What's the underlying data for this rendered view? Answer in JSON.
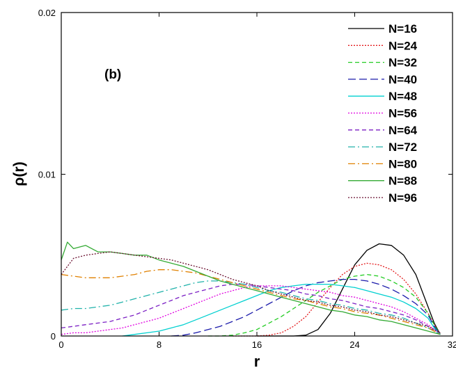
{
  "chart_data": {
    "type": "line",
    "panel_label": "(b)",
    "xlabel": "r",
    "ylabel": "ρ(r)",
    "xlim": [
      0,
      32
    ],
    "ylim": [
      0,
      0.02
    ],
    "xticks": [
      0,
      8,
      16,
      24,
      32
    ],
    "xtick_labels": [
      "0",
      "8",
      "16",
      "24",
      "32"
    ],
    "yticks": [
      0,
      0.01,
      0.02
    ],
    "ytick_labels": [
      "0",
      "0.01",
      "0.02"
    ],
    "grid": false,
    "legend_position": "top-right",
    "series": [
      {
        "name": "N=16",
        "color": "#000000",
        "dash": "solid",
        "x": [
          16,
          17,
          18,
          19,
          20,
          21,
          22,
          23,
          24,
          25,
          26,
          27,
          28,
          29,
          30,
          30.5,
          31
        ],
        "y": [
          0,
          0,
          0,
          0,
          5e-05,
          0.0004,
          0.0014,
          0.0029,
          0.0044,
          0.0053,
          0.0057,
          0.0056,
          0.005,
          0.0038,
          0.0018,
          0.0008,
          0.0001
        ]
      },
      {
        "name": "N=24",
        "color": "#e31a1c",
        "dash": "dotted",
        "x": [
          14,
          15,
          16,
          17,
          18,
          19,
          20,
          21,
          22,
          23,
          24,
          25,
          26,
          27,
          28,
          29,
          30,
          30.5,
          31
        ],
        "y": [
          0,
          0,
          0,
          5e-05,
          0.0002,
          0.0006,
          0.0012,
          0.0021,
          0.003,
          0.0038,
          0.0043,
          0.0045,
          0.0044,
          0.0041,
          0.0035,
          0.0026,
          0.0014,
          0.0007,
          0.0001
        ]
      },
      {
        "name": "N=32",
        "color": "#22cc22",
        "dash": "dashed",
        "x": [
          12,
          13,
          14,
          15,
          16,
          17,
          18,
          19,
          20,
          21,
          22,
          23,
          24,
          25,
          26,
          27,
          28,
          29,
          30,
          30.5,
          31
        ],
        "y": [
          0,
          0,
          5e-05,
          0.0002,
          0.0004,
          0.0008,
          0.0012,
          0.0017,
          0.0022,
          0.0027,
          0.0031,
          0.0035,
          0.0037,
          0.0038,
          0.0037,
          0.0034,
          0.003,
          0.0024,
          0.0014,
          0.0007,
          0.0001
        ]
      },
      {
        "name": "N=40",
        "color": "#1a1aaa",
        "dash": "longdash",
        "x": [
          9,
          10,
          11,
          12,
          13,
          14,
          15,
          16,
          17,
          18,
          19,
          20,
          21,
          22,
          23,
          24,
          25,
          26,
          27,
          28,
          29,
          30,
          30.5,
          31
        ],
        "y": [
          0,
          5e-05,
          0.0002,
          0.0004,
          0.0006,
          0.0009,
          0.0012,
          0.0016,
          0.002,
          0.0024,
          0.0028,
          0.0031,
          0.0033,
          0.0034,
          0.0035,
          0.0035,
          0.0034,
          0.0032,
          0.0029,
          0.0025,
          0.002,
          0.0013,
          0.0006,
          0.0001
        ]
      },
      {
        "name": "N=48",
        "color": "#00d0d0",
        "dash": "solid",
        "x": [
          5,
          6,
          7,
          8,
          9,
          10,
          11,
          12,
          13,
          14,
          15,
          16,
          17,
          18,
          19,
          20,
          21,
          22,
          23,
          24,
          25,
          26,
          27,
          28,
          29,
          30,
          30.5,
          31
        ],
        "y": [
          0,
          0.0001,
          0.0002,
          0.0003,
          0.0005,
          0.0007,
          0.001,
          0.0013,
          0.0016,
          0.0019,
          0.0022,
          0.0025,
          0.0028,
          0.003,
          0.0031,
          0.0032,
          0.0032,
          0.0032,
          0.0031,
          0.003,
          0.0028,
          0.0026,
          0.0024,
          0.0021,
          0.0017,
          0.0011,
          0.0005,
          0.0001
        ]
      },
      {
        "name": "N=56",
        "color": "#e000e0",
        "dash": "dotted",
        "x": [
          0,
          1,
          2,
          3,
          4,
          5,
          6,
          7,
          8,
          9,
          10,
          11,
          12,
          13,
          14,
          15,
          16,
          17,
          18,
          19,
          20,
          21,
          22,
          23,
          24,
          25,
          26,
          27,
          28,
          29,
          30,
          30.5,
          31
        ],
        "y": [
          0.0001,
          0.0002,
          0.0002,
          0.0003,
          0.0004,
          0.0005,
          0.0007,
          0.0009,
          0.0011,
          0.0014,
          0.0017,
          0.002,
          0.0023,
          0.0026,
          0.0028,
          0.003,
          0.0031,
          0.0031,
          0.0031,
          0.003,
          0.0029,
          0.0028,
          0.0027,
          0.0025,
          0.0024,
          0.0022,
          0.002,
          0.0018,
          0.0015,
          0.0011,
          0.0007,
          0.0004,
          0.0001
        ]
      },
      {
        "name": "N=64",
        "color": "#7b1fc4",
        "dash": "dashed",
        "x": [
          0,
          1,
          2,
          3,
          4,
          5,
          6,
          7,
          8,
          9,
          10,
          11,
          12,
          13,
          14,
          15,
          16,
          17,
          18,
          19,
          20,
          21,
          22,
          23,
          24,
          25,
          26,
          27,
          28,
          29,
          30,
          30.5,
          31
        ],
        "y": [
          0.0005,
          0.0006,
          0.0007,
          0.0008,
          0.0009,
          0.0011,
          0.0013,
          0.0016,
          0.0019,
          0.0022,
          0.0025,
          0.0027,
          0.0029,
          0.0031,
          0.0032,
          0.0032,
          0.0031,
          0.003,
          0.0029,
          0.0028,
          0.0026,
          0.0025,
          0.0023,
          0.0022,
          0.002,
          0.0018,
          0.0017,
          0.0015,
          0.0013,
          0.001,
          0.0006,
          0.0003,
          0.0001
        ]
      },
      {
        "name": "N=72",
        "color": "#20b2aa",
        "dash": "dashdot",
        "x": [
          0,
          1,
          2,
          3,
          4,
          5,
          6,
          7,
          8,
          9,
          10,
          11,
          12,
          13,
          14,
          15,
          16,
          17,
          18,
          19,
          20,
          21,
          22,
          23,
          24,
          25,
          26,
          27,
          28,
          29,
          30,
          30.5,
          31
        ],
        "y": [
          0.0016,
          0.0017,
          0.0017,
          0.0018,
          0.0019,
          0.0021,
          0.0023,
          0.0025,
          0.0027,
          0.0029,
          0.0031,
          0.0033,
          0.0034,
          0.0034,
          0.0033,
          0.0032,
          0.003,
          0.0028,
          0.0027,
          0.0025,
          0.0023,
          0.0022,
          0.002,
          0.0019,
          0.0017,
          0.0016,
          0.0014,
          0.0013,
          0.0011,
          0.0008,
          0.0005,
          0.0003,
          0.0001
        ]
      },
      {
        "name": "N=80",
        "color": "#e08000",
        "dash": "dashdot",
        "x": [
          0,
          1,
          2,
          3,
          4,
          5,
          6,
          7,
          8,
          9,
          10,
          11,
          12,
          13,
          14,
          15,
          16,
          17,
          18,
          19,
          20,
          21,
          22,
          23,
          24,
          25,
          26,
          27,
          28,
          29,
          30,
          30.5,
          31
        ],
        "y": [
          0.0038,
          0.0037,
          0.0036,
          0.0036,
          0.0036,
          0.0037,
          0.0038,
          0.004,
          0.0041,
          0.0041,
          0.004,
          0.0039,
          0.0037,
          0.0035,
          0.0033,
          0.0031,
          0.0029,
          0.0027,
          0.0025,
          0.0023,
          0.0022,
          0.002,
          0.0018,
          0.0017,
          0.0015,
          0.0014,
          0.0013,
          0.0011,
          0.0009,
          0.0007,
          0.0005,
          0.0003,
          0.0001
        ]
      },
      {
        "name": "N=88",
        "color": "#33aa33",
        "dash": "solid",
        "x": [
          0,
          0.5,
          1,
          2,
          3,
          4,
          5,
          6,
          7,
          8,
          9,
          10,
          11,
          12,
          13,
          14,
          15,
          16,
          17,
          18,
          19,
          20,
          21,
          22,
          23,
          24,
          25,
          26,
          27,
          28,
          29,
          30,
          30.5,
          31
        ],
        "y": [
          0.0047,
          0.0058,
          0.0054,
          0.0056,
          0.0052,
          0.0052,
          0.0051,
          0.005,
          0.005,
          0.0047,
          0.0045,
          0.0043,
          0.004,
          0.0037,
          0.0034,
          0.0032,
          0.003,
          0.0028,
          0.0026,
          0.0024,
          0.0022,
          0.002,
          0.0018,
          0.0016,
          0.0015,
          0.0013,
          0.0012,
          0.001,
          0.0009,
          0.0007,
          0.0005,
          0.0003,
          0.0002,
          0.0001
        ]
      },
      {
        "name": "N=96",
        "color": "#6b1030",
        "dash": "dotted",
        "x": [
          0,
          1,
          2,
          3,
          4,
          5,
          6,
          7,
          8,
          9,
          10,
          11,
          12,
          13,
          14,
          15,
          16,
          17,
          18,
          19,
          20,
          21,
          22,
          23,
          24,
          25,
          26,
          27,
          28,
          29,
          30,
          30.5,
          31
        ],
        "y": [
          0.0038,
          0.0048,
          0.005,
          0.0051,
          0.0052,
          0.0051,
          0.005,
          0.0049,
          0.0048,
          0.0047,
          0.0045,
          0.0043,
          0.0041,
          0.0038,
          0.0035,
          0.0033,
          0.0031,
          0.0028,
          0.0026,
          0.0024,
          0.0022,
          0.0021,
          0.0019,
          0.0018,
          0.0016,
          0.0015,
          0.0013,
          0.0012,
          0.001,
          0.0008,
          0.0006,
          0.0004,
          0.0002
        ]
      }
    ]
  }
}
